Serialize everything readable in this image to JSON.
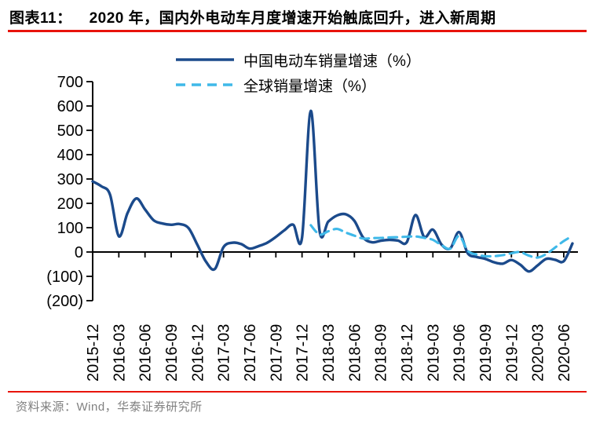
{
  "title": {
    "tag": "图表11：",
    "text": "2020 年，国内外电动车月度增速开始触底回升，进入新周期"
  },
  "legend": {
    "china_label": "中国电动车销量增速（%）",
    "global_label": "全球销量增速（%）"
  },
  "source_note": "资料来源：Wind，华泰证券研究所",
  "colors": {
    "china_line": "#1b4a8b",
    "global_line": "#3fb9e9",
    "accent_red": "#e8140c",
    "axis": "#000000",
    "source_text": "#808080"
  },
  "chart_data": {
    "type": "line",
    "title": "2020 年，国内外电动车月度增速开始触底回升，进入新周期",
    "xlabel": "",
    "ylabel": "",
    "ylim": [
      -200,
      700
    ],
    "grid": false,
    "legend_position": "top",
    "y_tick_values": [
      700,
      600,
      500,
      400,
      300,
      200,
      100,
      0,
      -100,
      -200
    ],
    "y_tick_labels": [
      "700",
      "600",
      "500",
      "400",
      "300",
      "200",
      "100",
      "0",
      "(100)",
      "(200)"
    ],
    "x_tick_labels": [
      "2015-12",
      "2016-03",
      "2016-06",
      "2016-09",
      "2016-12",
      "2017-03",
      "2017-06",
      "2017-09",
      "2017-12",
      "2018-03",
      "2018-06",
      "2018-09",
      "2018-12",
      "2019-03",
      "2019-06",
      "2019-09",
      "2019-12",
      "2020-03",
      "2020-06"
    ],
    "x": [
      "2015-12",
      "2016-01",
      "2016-02",
      "2016-03",
      "2016-04",
      "2016-05",
      "2016-06",
      "2016-07",
      "2016-08",
      "2016-09",
      "2016-10",
      "2016-11",
      "2016-12",
      "2017-01",
      "2017-02",
      "2017-03",
      "2017-04",
      "2017-05",
      "2017-06",
      "2017-07",
      "2017-08",
      "2017-09",
      "2017-10",
      "2017-11",
      "2017-12",
      "2018-01",
      "2018-02",
      "2018-03",
      "2018-04",
      "2018-05",
      "2018-06",
      "2018-07",
      "2018-08",
      "2018-09",
      "2018-10",
      "2018-11",
      "2018-12",
      "2019-01",
      "2019-02",
      "2019-03",
      "2019-04",
      "2019-05",
      "2019-06",
      "2019-07",
      "2019-08",
      "2019-09",
      "2019-10",
      "2019-11",
      "2019-12",
      "2020-01",
      "2020-02",
      "2020-03",
      "2020-04",
      "2020-05",
      "2020-06",
      "2020-07"
    ],
    "series": [
      {
        "name": "中国电动车销量增速（%）",
        "style": "solid",
        "color": "#1b4a8b",
        "values": [
          290,
          270,
          235,
          65,
          160,
          220,
          175,
          130,
          117,
          112,
          115,
          98,
          30,
          -40,
          -70,
          20,
          38,
          33,
          14,
          24,
          38,
          62,
          90,
          112,
          58,
          580,
          88,
          125,
          150,
          155,
          128,
          60,
          40,
          46,
          50,
          47,
          40,
          152,
          62,
          92,
          30,
          15,
          82,
          -5,
          -20,
          -28,
          -42,
          -48,
          -33,
          -52,
          -80,
          -55,
          -28,
          -32,
          -38,
          35
        ]
      },
      {
        "name": "全球销量增速（%）",
        "style": "dashed",
        "color": "#3fb9e9",
        "values": [
          null,
          null,
          null,
          null,
          null,
          null,
          null,
          null,
          null,
          null,
          null,
          null,
          null,
          null,
          null,
          null,
          null,
          null,
          null,
          null,
          null,
          null,
          null,
          null,
          null,
          110,
          72,
          85,
          95,
          80,
          67,
          55,
          57,
          58,
          60,
          61,
          63,
          64,
          58,
          50,
          28,
          14,
          66,
          5,
          -10,
          -17,
          -17,
          -13,
          -5,
          0,
          -15,
          -23,
          -8,
          18,
          45,
          66
        ]
      }
    ]
  }
}
